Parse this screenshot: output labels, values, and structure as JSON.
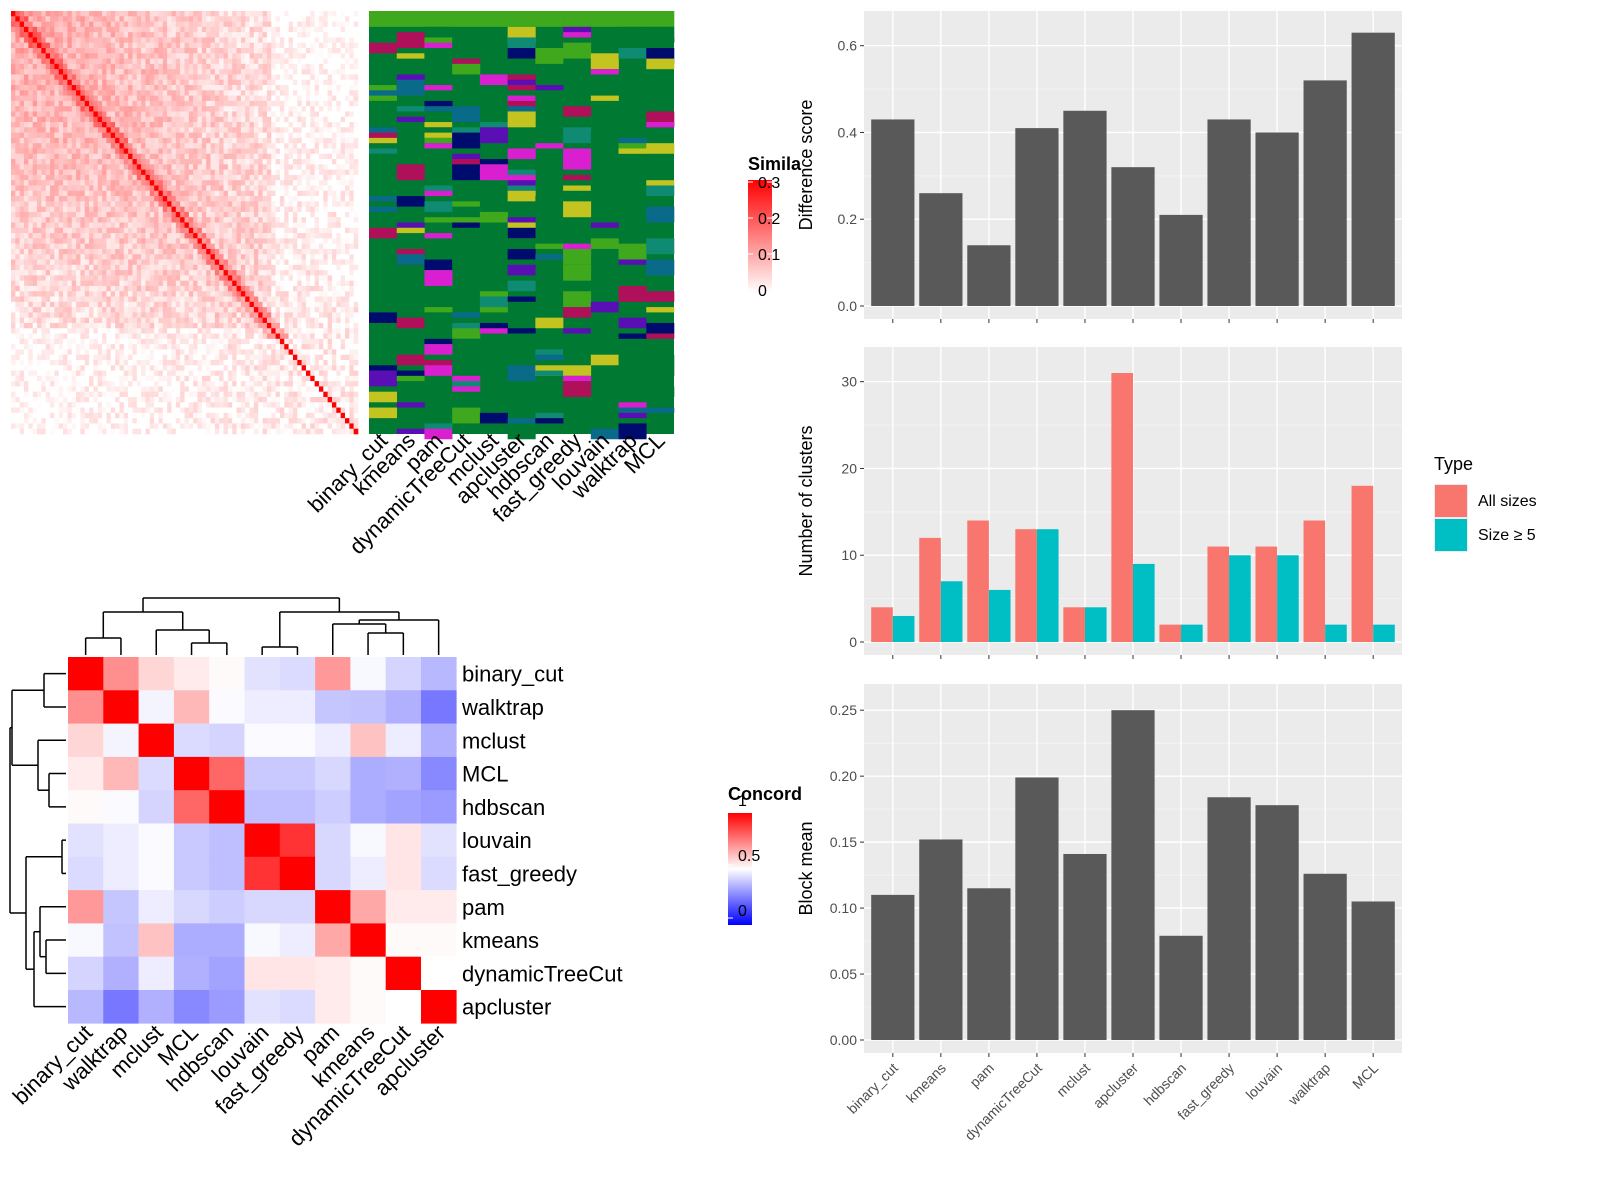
{
  "colors": {
    "panel_bg": "#ebebeb",
    "grid": "#ffffff",
    "bar_dark": "#595959",
    "all_sizes": "#f8766d",
    "size5": "#00bfc4",
    "heat_red": "#ff0000",
    "heat_blue": "#0000ff",
    "green_dark": "#007a33",
    "green_light": "#3fa81c",
    "magenta": "#d91fd0",
    "navy": "#000b6e",
    "purple": "#5a0fb5",
    "teal": "#0f8a73"
  },
  "methods": [
    "binary_cut",
    "kmeans",
    "pam",
    "dynamicTreeCut",
    "mclust",
    "apcluster",
    "hdbscan",
    "fast_greedy",
    "louvain",
    "walktrap",
    "MCL"
  ],
  "similarity_heatmap": {
    "legend_title": "Simila",
    "legend_ticks": [
      "0.3",
      "0.2",
      "0.1",
      "0"
    ]
  },
  "concordance_heatmap": {
    "legend_title": "Concord",
    "legend_ticks": [
      "1",
      "0.5",
      "0"
    ],
    "order": [
      "binary_cut",
      "walktrap",
      "mclust",
      "MCL",
      "hdbscan",
      "louvain",
      "fast_greedy",
      "pam",
      "kmeans",
      "dynamicTreeCut",
      "apcluster"
    ],
    "matrix": [
      [
        1.0,
        0.72,
        0.58,
        0.54,
        0.51,
        0.42,
        0.4,
        0.7,
        0.48,
        0.38,
        0.3
      ],
      [
        0.72,
        1.0,
        0.47,
        0.64,
        0.49,
        0.45,
        0.45,
        0.34,
        0.33,
        0.28,
        0.12
      ],
      [
        0.58,
        0.47,
        1.0,
        0.4,
        0.38,
        0.49,
        0.49,
        0.45,
        0.62,
        0.45,
        0.28
      ],
      [
        0.54,
        0.64,
        0.4,
        1.0,
        0.8,
        0.35,
        0.35,
        0.39,
        0.27,
        0.28,
        0.17
      ],
      [
        0.51,
        0.49,
        0.38,
        0.8,
        1.0,
        0.32,
        0.32,
        0.36,
        0.27,
        0.24,
        0.22
      ],
      [
        0.42,
        0.45,
        0.49,
        0.35,
        0.32,
        1.0,
        0.9,
        0.39,
        0.48,
        0.55,
        0.42
      ],
      [
        0.4,
        0.45,
        0.49,
        0.35,
        0.32,
        0.9,
        1.0,
        0.39,
        0.45,
        0.55,
        0.4
      ],
      [
        0.7,
        0.34,
        0.45,
        0.39,
        0.36,
        0.39,
        0.39,
        1.0,
        0.67,
        0.54,
        0.54
      ],
      [
        0.48,
        0.33,
        0.62,
        0.27,
        0.27,
        0.48,
        0.45,
        0.67,
        1.0,
        0.51,
        0.51
      ],
      [
        0.38,
        0.28,
        0.45,
        0.28,
        0.24,
        0.55,
        0.55,
        0.54,
        0.51,
        1.0,
        0.5
      ],
      [
        0.3,
        0.12,
        0.28,
        0.17,
        0.22,
        0.42,
        0.4,
        0.54,
        0.51,
        0.5,
        1.0
      ]
    ]
  },
  "chart_data": [
    {
      "type": "bar",
      "categories": [
        "binary_cut",
        "kmeans",
        "pam",
        "dynamicTreeCut",
        "mclust",
        "apcluster",
        "hdbscan",
        "fast_greedy",
        "louvain",
        "walktrap",
        "MCL"
      ],
      "values": [
        0.43,
        0.26,
        0.14,
        0.41,
        0.45,
        0.32,
        0.21,
        0.43,
        0.4,
        0.52,
        0.63
      ],
      "title": "",
      "xlabel": "",
      "ylabel": "Difference score",
      "ylim": [
        0,
        0.65
      ],
      "yticks": [
        "0.0",
        "0.2",
        "0.4",
        "0.6"
      ],
      "grid": true
    },
    {
      "type": "bar",
      "categories": [
        "binary_cut",
        "kmeans",
        "pam",
        "dynamicTreeCut",
        "mclust",
        "apcluster",
        "hdbscan",
        "fast_greedy",
        "louvain",
        "walktrap",
        "MCL"
      ],
      "series": [
        {
          "name": "All sizes",
          "values": [
            4,
            12,
            14,
            13,
            4,
            31,
            2,
            11,
            11,
            14,
            18
          ]
        },
        {
          "name": "Size ≥ 5",
          "values": [
            3,
            7,
            6,
            13,
            4,
            9,
            2,
            10,
            10,
            2,
            2
          ]
        }
      ],
      "title": "",
      "xlabel": "",
      "ylabel": "Number of clusters",
      "ylim": [
        0,
        32.5
      ],
      "yticks": [
        "0",
        "10",
        "20",
        "30"
      ],
      "legend_title": "Type",
      "legend_position": "right",
      "grid": true
    },
    {
      "type": "bar",
      "categories": [
        "binary_cut",
        "kmeans",
        "pam",
        "dynamicTreeCut",
        "mclust",
        "apcluster",
        "hdbscan",
        "fast_greedy",
        "louvain",
        "walktrap",
        "MCL"
      ],
      "values": [
        0.11,
        0.152,
        0.115,
        0.199,
        0.141,
        0.25,
        0.079,
        0.184,
        0.178,
        0.126,
        0.105
      ],
      "title": "",
      "xlabel": "",
      "ylabel": "Block mean",
      "ylim": [
        0,
        0.26
      ],
      "yticks": [
        "0.00",
        "0.05",
        "0.10",
        "0.15",
        "0.20",
        "0.25"
      ],
      "grid": true
    }
  ]
}
